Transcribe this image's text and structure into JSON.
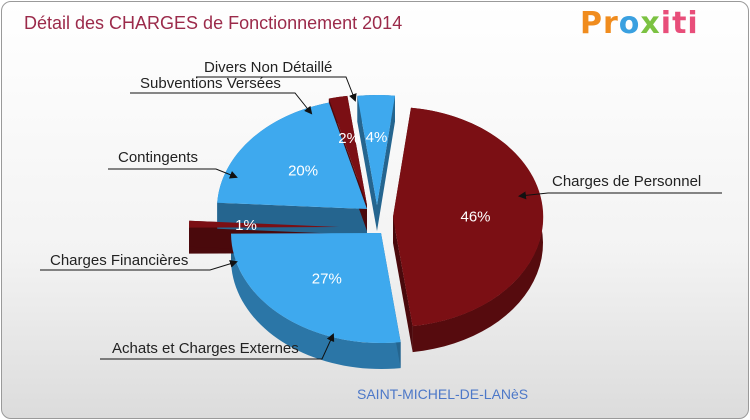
{
  "title": "Détail des CHARGES de Fonctionnement 2014",
  "logo": {
    "p1": "Pr",
    "p2": "o",
    "p3": "x",
    "p4": "iti"
  },
  "commune": "SAINT-MICHEL-DE-LANèS",
  "chart_data": {
    "type": "pie",
    "title": "Détail des CHARGES de Fonctionnement 2014",
    "slices": [
      {
        "label": "Charges de Personnel",
        "pct_label": "46%",
        "value": 46,
        "color": "#7b0f14"
      },
      {
        "label": "Achats et Charges Externes",
        "pct_label": "27%",
        "value": 27,
        "color": "#3ea9ee"
      },
      {
        "label": "Charges Financières",
        "pct_label": "1%",
        "value": 1,
        "color": "#7b0f14"
      },
      {
        "label": "Contingents",
        "pct_label": "20%",
        "value": 20,
        "color": "#3ea9ee"
      },
      {
        "label": "Subventions Versées",
        "pct_label": "2%",
        "value": 2,
        "color": "#7b0f14"
      },
      {
        "label": "Divers Non Détaillé",
        "pct_label": "4%",
        "value": 4,
        "color": "#3ea9ee"
      }
    ]
  }
}
